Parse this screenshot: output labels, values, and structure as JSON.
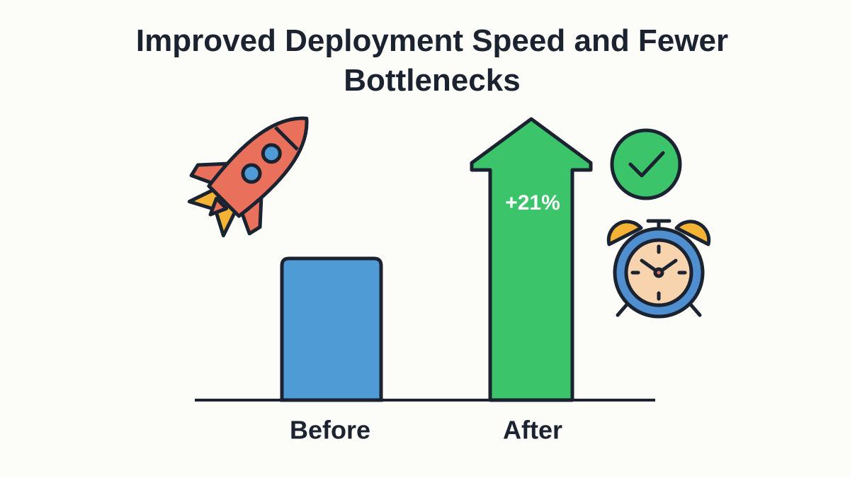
{
  "chart_data": {
    "type": "bar",
    "title": "Improved Deployment Speed and Fewer Bottlenecks",
    "categories": [
      "Before",
      "After"
    ],
    "annotation": "+21%"
  }
}
